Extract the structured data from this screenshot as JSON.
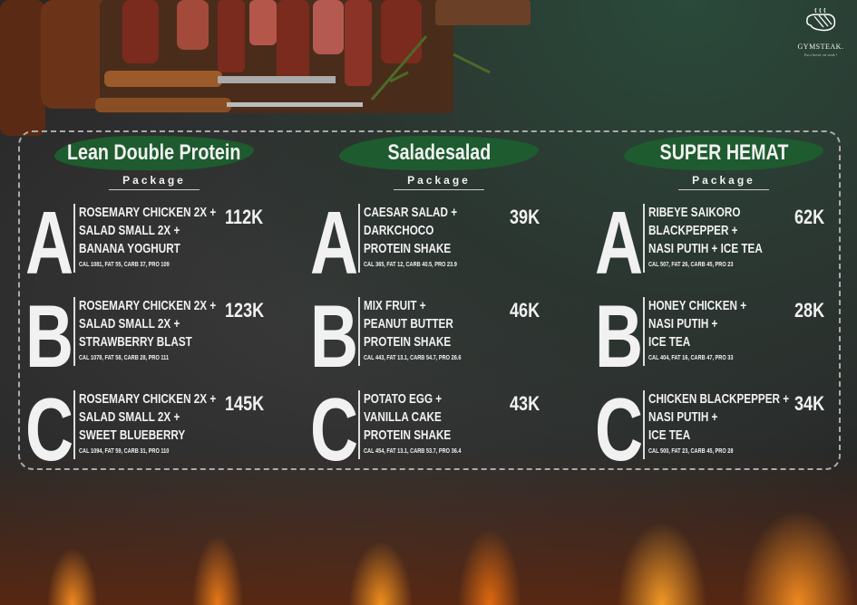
{
  "brand": {
    "name": "GYMSTEAK.",
    "tagline": "Eat a bread, eat steak !",
    "icon": "steak-icon"
  },
  "colors": {
    "banner": "#1e5b2e",
    "background": "#2a2a2a",
    "flame": "#f08a20"
  },
  "packages": [
    {
      "title": "Lean Double Protein",
      "subtitle": "Package",
      "items": [
        {
          "letter": "A",
          "lines": [
            "ROSEMARY CHICKEN 2X +",
            "SALAD SMALL 2X +",
            "BANANA YOGHURT"
          ],
          "nutrition": "CAL 1081, FAT 55, CARB 37, PRO 109",
          "price": "112K"
        },
        {
          "letter": "B",
          "lines": [
            "ROSEMARY CHICKEN 2X +",
            "SALAD SMALL 2X +",
            "STRAWBERRY BLAST"
          ],
          "nutrition": "CAL 1078, FAT 58, CARB 28, PRO 111",
          "price": "123K"
        },
        {
          "letter": "C",
          "lines": [
            "ROSEMARY CHICKEN 2X +",
            "SALAD SMALL 2X +",
            "SWEET BLUEBERRY"
          ],
          "nutrition": "CAL 1094, FAT 59, CARB 31, PRO 110",
          "price": "145K"
        }
      ]
    },
    {
      "title": "Saladesalad",
      "subtitle": "Package",
      "items": [
        {
          "letter": "A",
          "lines": [
            "CAESAR SALAD +",
            "DARKCHOCO",
            "PROTEIN SHAKE"
          ],
          "nutrition": "CAL 365, FAT 12, CARB 40.5, PRO 23.9",
          "price": "39K"
        },
        {
          "letter": "B",
          "lines": [
            "MIX FRUIT +",
            "PEANUT BUTTER",
            "PROTEIN SHAKE"
          ],
          "nutrition": "CAL 443, FAT 13.1, CARB 54.7, PRO 26.6",
          "price": "46K"
        },
        {
          "letter": "C",
          "lines": [
            "POTATO EGG +",
            "VANILLA CAKE",
            "PROTEIN SHAKE"
          ],
          "nutrition": "CAL 454, FAT 13.1, CARB 53.7, PRO 36.4",
          "price": "43K"
        }
      ]
    },
    {
      "title": "SUPER HEMAT",
      "subtitle": "Package",
      "items": [
        {
          "letter": "A",
          "lines": [
            "RIBEYE SAIKORO",
            "BLACKPEPPER +",
            "NASI PUTIH + ICE TEA"
          ],
          "nutrition": "CAL 507, FAT 26, CARB 45, PRO 23",
          "price": "62K"
        },
        {
          "letter": "B",
          "lines": [
            "HONEY CHICKEN +",
            "NASI PUTIH +",
            "ICE TEA"
          ],
          "nutrition": "CAL 404, FAT 16, CARB 47, PRO 33",
          "price": "28K"
        },
        {
          "letter": "C",
          "lines": [
            "CHICKEN BLACKPEPPER +",
            "NASI PUTIH +",
            "ICE TEA"
          ],
          "nutrition": "CAL 500, FAT 23, CARB 45, PRO 28",
          "price": "34K"
        }
      ]
    }
  ]
}
